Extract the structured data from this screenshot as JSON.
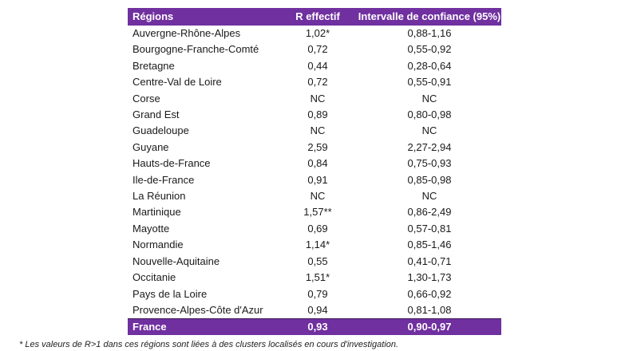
{
  "header": {
    "region": "Régions",
    "r": "R effectif",
    "ci": "Intervalle de confiance (95%)"
  },
  "rows": [
    {
      "region": "Auvergne-Rhône-Alpes",
      "r": "1,02*",
      "ci": "0,88-1,16"
    },
    {
      "region": "Bourgogne-Franche-Comté",
      "r": "0,72",
      "ci": "0,55-0,92"
    },
    {
      "region": "Bretagne",
      "r": "0,44",
      "ci": "0,28-0,64"
    },
    {
      "region": "Centre-Val de Loire",
      "r": "0,72",
      "ci": "0,55-0,91"
    },
    {
      "region": "Corse",
      "r": "NC",
      "ci": "NC"
    },
    {
      "region": "Grand Est",
      "r": "0,89",
      "ci": "0,80-0,98"
    },
    {
      "region": "Guadeloupe",
      "r": "NC",
      "ci": "NC"
    },
    {
      "region": "Guyane",
      "r": "2,59",
      "ci": "2,27-2,94"
    },
    {
      "region": "Hauts-de-France",
      "r": "0,84",
      "ci": "0,75-0,93"
    },
    {
      "region": "Ile-de-France",
      "r": "0,91",
      "ci": "0,85-0,98"
    },
    {
      "region": "La Réunion",
      "r": "NC",
      "ci": "NC"
    },
    {
      "region": "Martinique",
      "r": "1,57**",
      "ci": "0,86-2,49"
    },
    {
      "region": "Mayotte",
      "r": "0,69",
      "ci": "0,57-0,81"
    },
    {
      "region": "Normandie",
      "r": "1,14*",
      "ci": "0,85-1,46"
    },
    {
      "region": "Nouvelle-Aquitaine",
      "r": "0,55",
      "ci": "0,41-0,71"
    },
    {
      "region": "Occitanie",
      "r": "1,51*",
      "ci": "1,30-1,73"
    },
    {
      "region": "Pays de la Loire",
      "r": "0,79",
      "ci": "0,66-0,92"
    },
    {
      "region": "Provence-Alpes-Côte d'Azur",
      "r": "0,94",
      "ci": "0,81-1,08"
    }
  ],
  "total": {
    "region": "France",
    "r": "0,93",
    "ci": "0,90-0,97"
  },
  "footnote": "* Les valeurs de R>1 dans ces régions sont liées à des clusters localisés en cours d'investigation.",
  "colors": {
    "header_bg": "#7030a0",
    "header_text": "#ffffff"
  }
}
